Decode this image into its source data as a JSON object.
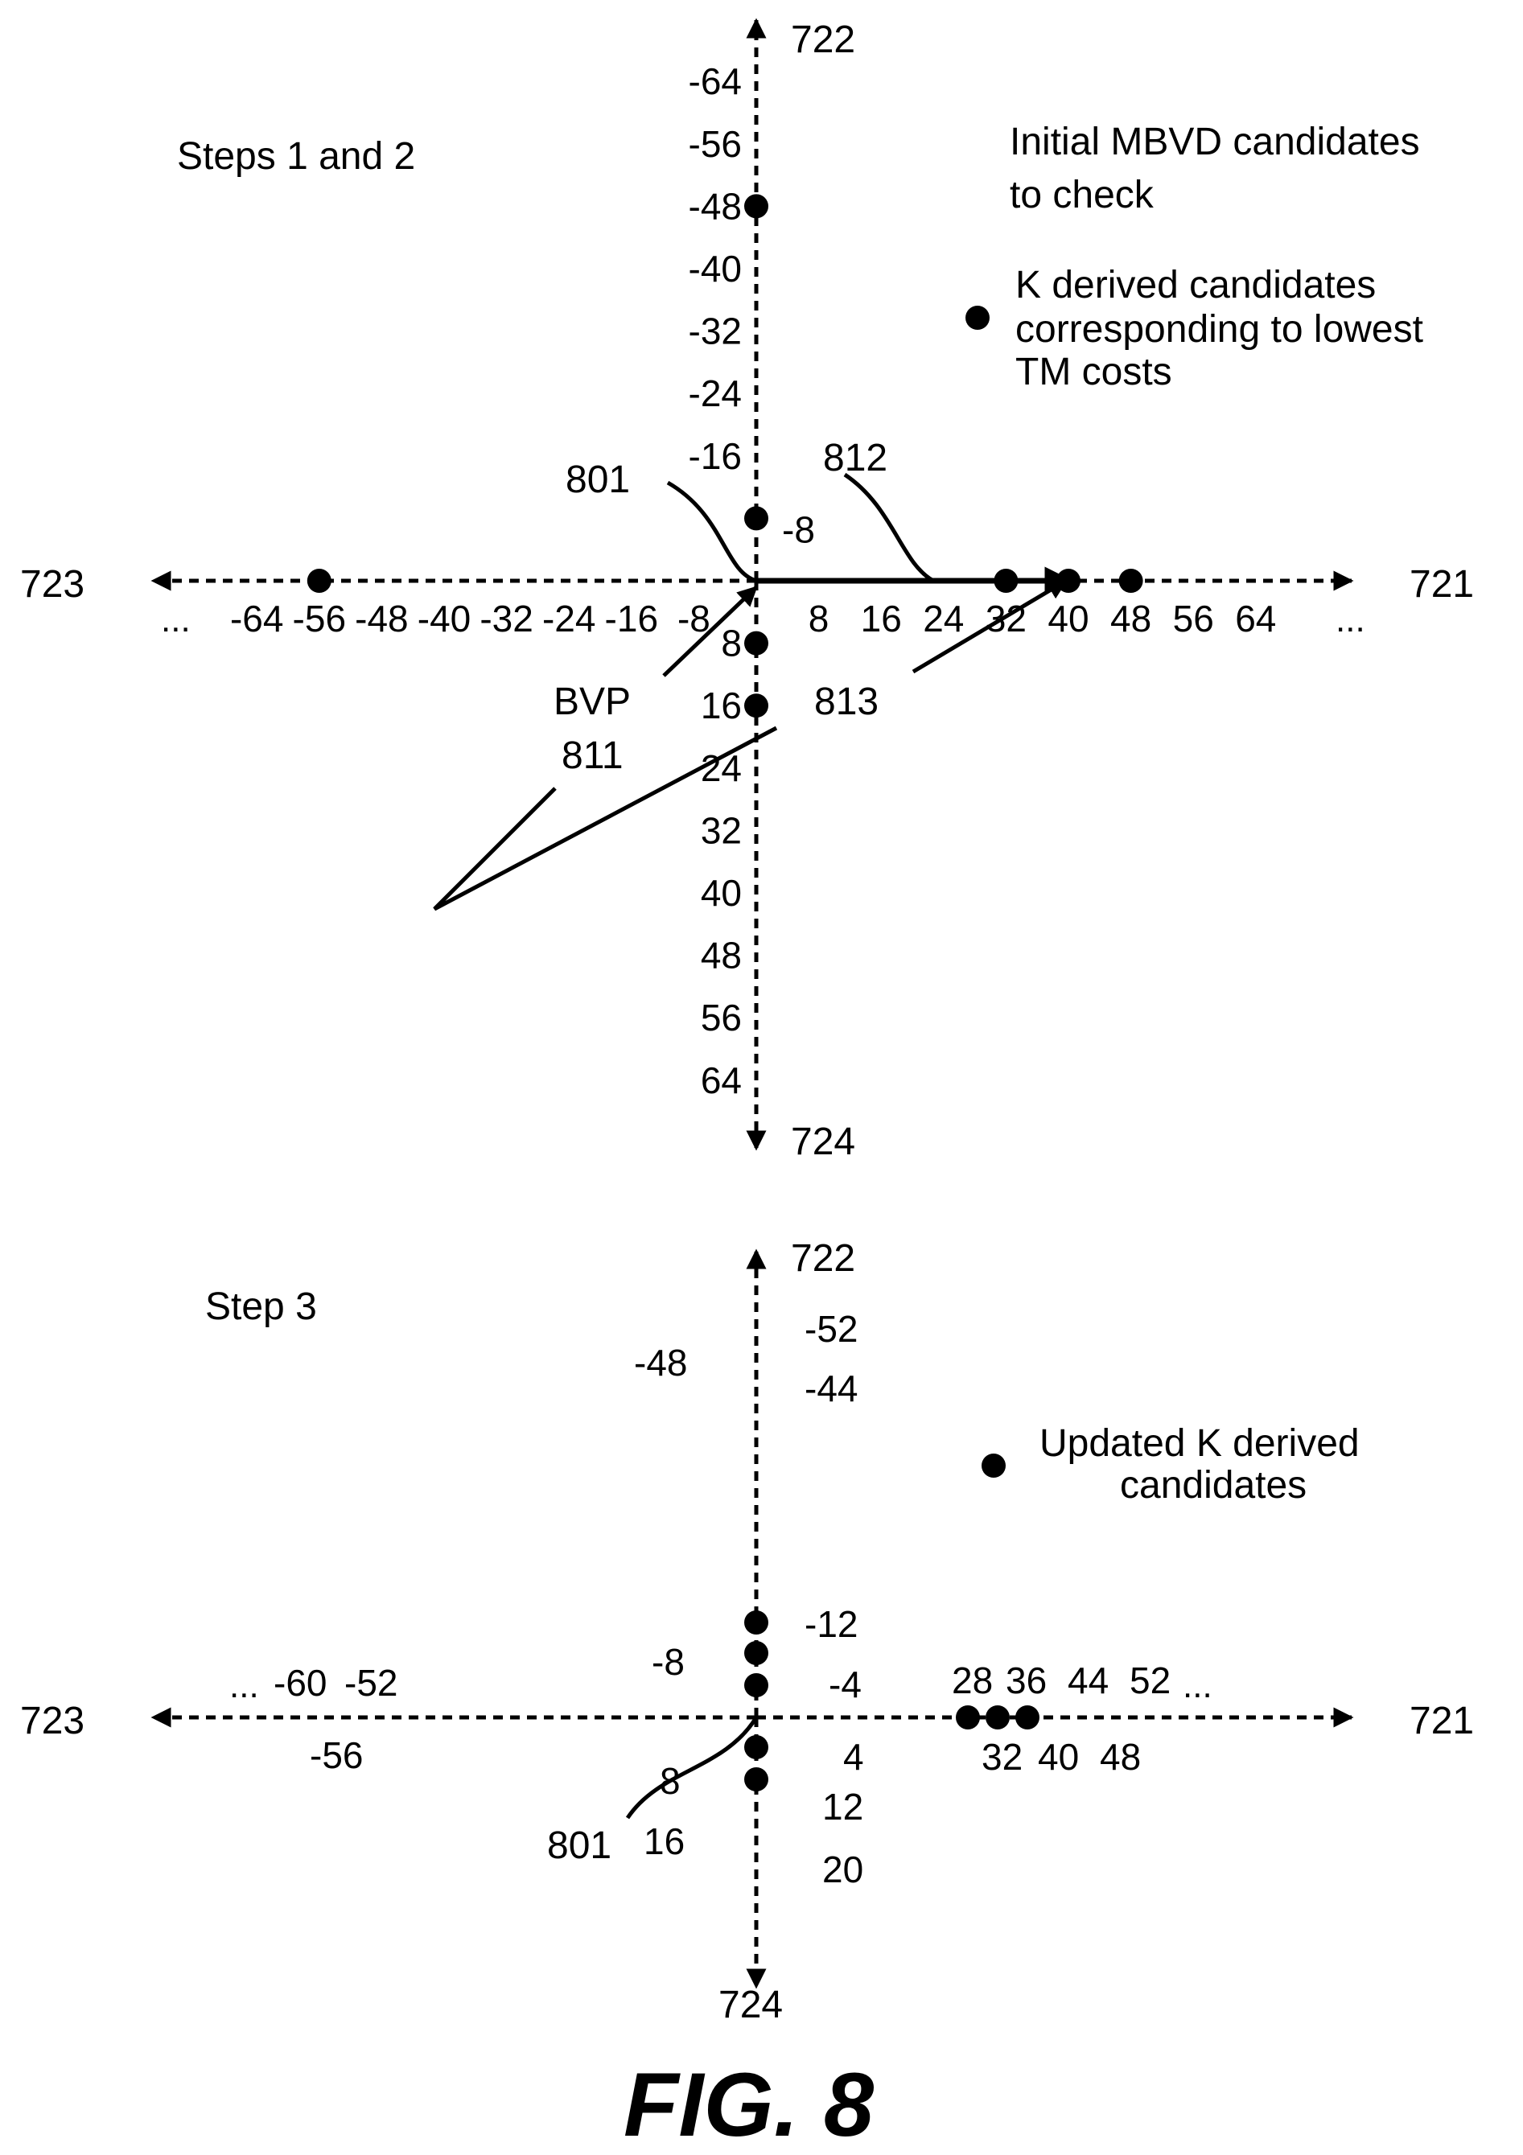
{
  "figure_label": "FIG. 8",
  "panel_top": {
    "title": "Steps 1 and 2",
    "axis_labels": {
      "right": "721",
      "up": "722",
      "left": "723",
      "down": "724"
    },
    "legend": {
      "x_line1": "Initial MBVD candidates",
      "x_line2": "to check",
      "c_line1": "K derived candidates",
      "c_line2": "corresponding to lowest",
      "c_line3": "TM costs"
    },
    "ellipsis": "...",
    "h_ticks_neg": [
      "-64",
      "-56",
      "-48",
      "-40",
      "-32",
      "-24",
      "-16",
      "-8"
    ],
    "h_ticks_pos": [
      "8",
      "16",
      "24",
      "32",
      "40",
      "48",
      "56",
      "64"
    ],
    "v_ticks_neg": [
      "-64",
      "-56",
      "-48",
      "-40",
      "-32",
      "-24",
      "-16",
      "-8"
    ],
    "v_ticks_pos": [
      "8",
      "16",
      "24",
      "32",
      "40",
      "48",
      "56",
      "64"
    ],
    "refs": {
      "r801": "801",
      "r812": "812",
      "r813": "813",
      "bvp": "BVP",
      "r811": "811"
    },
    "derived_candidates": {
      "horizontal": [
        -56,
        32,
        40,
        48
      ],
      "vertical": [
        -48,
        -8,
        8,
        16
      ]
    }
  },
  "panel_bottom": {
    "title": "Step 3",
    "axis_labels": {
      "right": "721",
      "up": "722",
      "left": "723",
      "down": "724"
    },
    "legend": {
      "c_line1": "Updated K derived",
      "c_line2": "candidates"
    },
    "ellipsis": "...",
    "h_labels": [
      "-60",
      "-52",
      "-56",
      "28",
      "36",
      "44",
      "52",
      "32",
      "40",
      "48"
    ],
    "v_labels": [
      "-52",
      "-48",
      "-44",
      "-12",
      "-8",
      "-4",
      "4",
      "8",
      "12",
      "16",
      "20"
    ],
    "refs": {
      "r801": "801"
    }
  }
}
